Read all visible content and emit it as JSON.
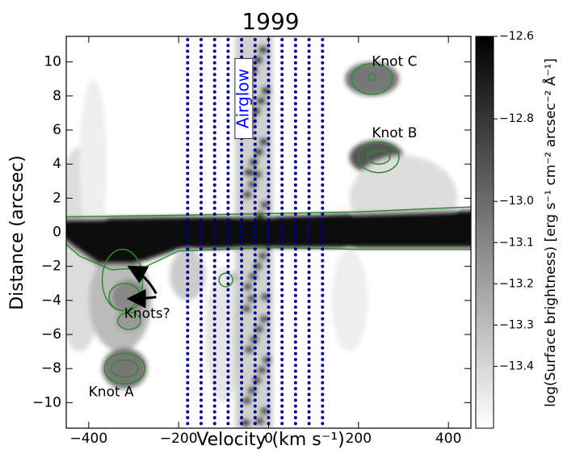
{
  "chart_data": {
    "type": "heatmap",
    "title": "1999",
    "x_label": "Velocity (km s⁻¹)",
    "y_label": "Distance (arcsec)",
    "colorbar_label": "log(Surface brightness) [erg s⁻¹ cm⁻² arcsec⁻² Å⁻¹]",
    "xlim": [
      -450,
      450
    ],
    "xticks": [
      {
        "value": -400,
        "label": "−400"
      },
      {
        "value": -200,
        "label": "−200"
      },
      0,
      200,
      400
    ],
    "ylim": [
      -11.5,
      11.5
    ],
    "yticks": [
      {
        "value": -10,
        "label": "−10"
      },
      {
        "value": -8,
        "label": "−8"
      },
      {
        "value": -6,
        "label": "−6"
      },
      {
        "value": -4,
        "label": "−4"
      },
      {
        "value": -2,
        "label": "−2"
      },
      0,
      2,
      4,
      6,
      8,
      10
    ],
    "clim": [
      -13.55,
      -12.6
    ],
    "cticks": [
      {
        "value": -12.6,
        "label": "−12.6"
      },
      {
        "value": -12.8,
        "label": "−12.8"
      },
      {
        "value": -13.0,
        "label": "−13.0"
      },
      {
        "value": -13.1,
        "label": "−13.1"
      },
      {
        "value": -13.2,
        "label": "−13.2"
      },
      {
        "value": -13.3,
        "label": "−13.3"
      },
      {
        "value": -13.4,
        "label": "−13.4"
      }
    ],
    "airglow_lines": [
      -180,
      -150,
      -120,
      -90,
      -60,
      -30,
      0,
      30,
      60,
      90,
      120
    ],
    "airglow_color": "#00008b",
    "contour_color": "#2e8b2e",
    "annotations": [
      "Knot C",
      "Knot B",
      "Knot A",
      "Knots?",
      "Airglow"
    ]
  }
}
